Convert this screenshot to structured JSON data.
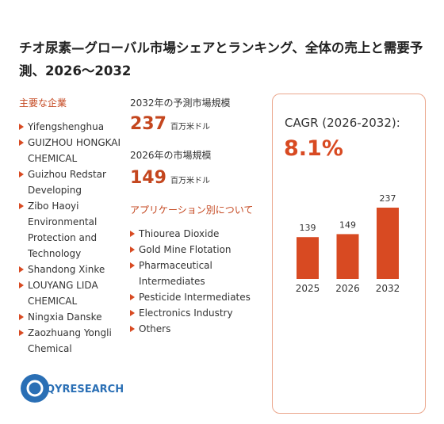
{
  "header": {
    "title": "チオ尿素—グローバル市場シェアとランキング、全体の売上と需要予測、2026～2032"
  },
  "companies": {
    "heading": "主要な企業",
    "items": [
      "Yifengshenghua",
      "GUIZHOU HONGKAI CHEMICAL",
      "Guizhou Redstar Developing",
      "Zibo Haoyi Environmental Protection and Technology",
      "Shandong Xinke",
      "LOUYANG LIDA CHEMICAL",
      "Ningxia Danske",
      "Zaozhuang Yongli Chemical"
    ]
  },
  "market": {
    "label_2032": "2032年の予測市場規模",
    "value_2032": 237,
    "unit_2032": "百万米ドル",
    "label_2026": "2026年の市場規模",
    "value_2026": 149,
    "unit_2026": "百万米ドル"
  },
  "applications": {
    "heading": "アプリケーション別について",
    "items": [
      "Thiourea Dioxide",
      "Gold Mine Flotation",
      "Pharmaceutical Intermediates",
      "Pesticide Intermediates",
      "Electronics Industry",
      "Others"
    ]
  },
  "cagr": {
    "label": "CAGR (2026-2032):",
    "value": "8.1%"
  },
  "chart_data": {
    "type": "bar",
    "categories": [
      "2025",
      "2026",
      "2032"
    ],
    "values": [
      139,
      149,
      237
    ],
    "color": "#d84a22"
  },
  "logo": {
    "text": "QYRESEARCH"
  }
}
